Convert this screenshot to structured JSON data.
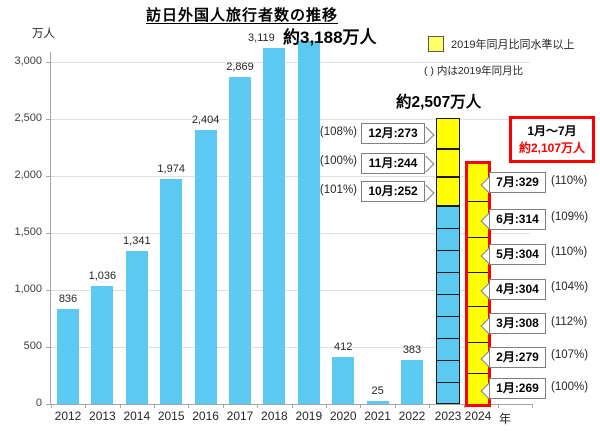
{
  "chart_data": {
    "type": "bar",
    "title": "訪日外国人旅行者数の推移",
    "ylabel": "万人",
    "xlabel": "年",
    "ylim": [
      0,
      3250
    ],
    "yticks": [
      0,
      500,
      1000,
      1500,
      2000,
      2500,
      3000
    ],
    "ytick_labels": [
      "0",
      "500",
      "1,000",
      "1,500",
      "2,000",
      "2,500",
      "3,000"
    ],
    "grid": true,
    "categories": [
      "2012",
      "2013",
      "2014",
      "2015",
      "2016",
      "2017",
      "2018",
      "2019",
      "2020",
      "2021",
      "2022",
      "2023",
      "2024"
    ],
    "values": [
      836,
      1036,
      1341,
      1974,
      2404,
      2869,
      3119,
      3188,
      412,
      25,
      383,
      2507,
      2107
    ],
    "value_labels": [
      "836",
      "1,036",
      "1,341",
      "1,974",
      "2,404",
      "2,869",
      "3,119",
      "",
      "412",
      "25",
      "383",
      "",
      ""
    ],
    "annotations": {
      "total_2019": "約3,188万人",
      "total_2023": "約2,507万人",
      "box_2024_line1": "1月〜7月",
      "box_2024_line2": "約2,107万人"
    },
    "legend": {
      "swatch_label": "2019年同月比同水準以上",
      "note": "( ) 内は2019年同月比",
      "position": "top-right"
    },
    "bars_2023_labeled_months": [
      {
        "month": "12月",
        "value": 273,
        "vs_2019": "(108%)"
      },
      {
        "month": "11月",
        "value": 244,
        "vs_2019": "(100%)"
      },
      {
        "month": "10月",
        "value": 252,
        "vs_2019": "(101%)"
      }
    ],
    "bars_2023_unlabeled_segment_count": 9,
    "bars_2024_months": [
      {
        "month": "7月",
        "value": 329,
        "vs_2019": "(110%)"
      },
      {
        "month": "6月",
        "value": 314,
        "vs_2019": "(109%)"
      },
      {
        "month": "5月",
        "value": 304,
        "vs_2019": "(110%)"
      },
      {
        "month": "4月",
        "value": 304,
        "vs_2019": "(104%)"
      },
      {
        "month": "3月",
        "value": 308,
        "vs_2019": "(112%)"
      },
      {
        "month": "2月",
        "value": 279,
        "vs_2019": "(107%)"
      },
      {
        "month": "1月",
        "value": 269,
        "vs_2019": "(100%)"
      }
    ],
    "colors": {
      "bar_blue": "#5CC9F2",
      "bar_yellow": "#FFFF00",
      "legend_yellow": "#FFFF66",
      "highlight_red": "#FF0000",
      "segment_border": "#1a1a1a",
      "gridline": "#E0E0E0",
      "axis": "#A6A6A6",
      "callout_border": "#7F7F7F"
    }
  }
}
